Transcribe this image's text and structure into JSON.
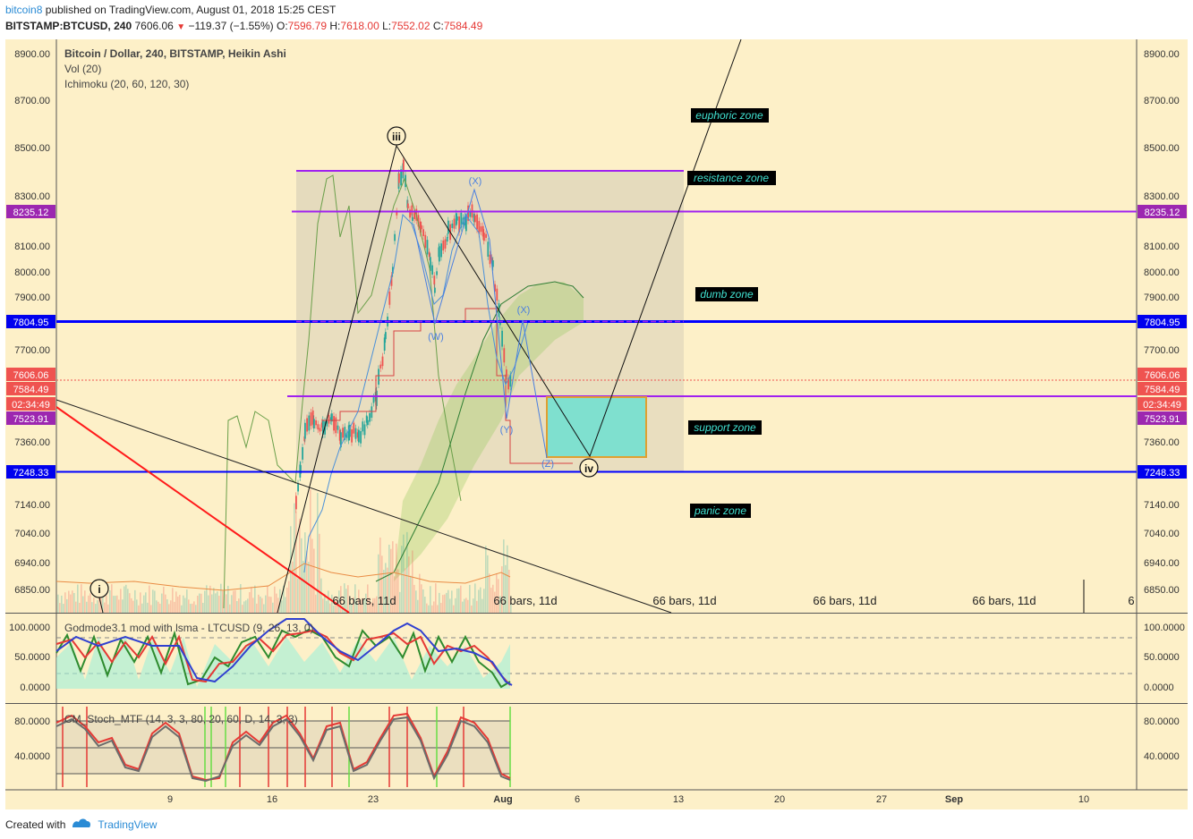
{
  "header": {
    "user": "bitcoin8",
    "published": "published on TradingView.com, August 01, 2018 15:25 CEST",
    "symbol": "BITSTAMP:BTCUSD, 240",
    "last": "7606.06",
    "change": "−119.37 (−1.55%)",
    "o_label": "O:",
    "o": "7596.79",
    "h_label": "H:",
    "h": "7618.00",
    "l_label": "L:",
    "l": "7552.02",
    "c_label": "C:",
    "c": "7584.49"
  },
  "legend": {
    "title": "Bitcoin / Dollar, 240, BITSTAMP, Heikin Ashi",
    "vol": "Vol (20)",
    "ichimoku": "Ichimoku (20, 60, 120, 30)",
    "osc1": "Godmode3.1 mod with lsma - LTCUSD (9, 26, 13, 0)",
    "osc2": "CM_Stoch_MTF (14, 3, 3, 80, 20, 60, D, 14, 3, 3)"
  },
  "footer": {
    "created": "Created with",
    "brand": "TradingView"
  },
  "colors": {
    "chart_bg": "#fdf0c8",
    "up": "#26a69a",
    "down": "#ef5350",
    "purple": "#a020f0",
    "blue": "#0000ff",
    "zone_label_bg": "#000000",
    "zone_label_fg": "#40e0d0",
    "target_box": "#7fe0cf"
  },
  "chart_data": {
    "type": "candlestick",
    "price_axis": {
      "ticks": [
        "8900.00",
        "8700.00",
        "8500.00",
        "8300.00",
        "8100.00",
        "8000.00",
        "7900.00",
        "7700.00",
        "7360.00",
        "7140.00",
        "7040.00",
        "6940.00",
        "6850.00"
      ],
      "badges": [
        {
          "text": "8235.12",
          "color": "#9c27b0"
        },
        {
          "text": "7804.95",
          "color": "#0000ee"
        },
        {
          "text": "7606.06",
          "color": "#ef5350"
        },
        {
          "text": "7584.49",
          "color": "#ef5350"
        },
        {
          "text": "02:34:49",
          "color": "#ef5350"
        },
        {
          "text": "7523.91",
          "color": "#9c27b0"
        },
        {
          "text": "7248.33",
          "color": "#0000ee"
        }
      ]
    },
    "time_axis": {
      "ticks": [
        "9",
        "16",
        "23",
        "Aug",
        "6",
        "13",
        "20",
        "27",
        "Sep",
        "10"
      ]
    },
    "zones": [
      "euphoric zone",
      "resistance zone",
      "dumb zone",
      "support zone",
      "panic zone"
    ],
    "wave_labels": [
      "iii",
      "i",
      "iv"
    ],
    "sub_wave_labels": [
      "(X)",
      "(W)",
      "(X)",
      "(Y)",
      "(Z)"
    ],
    "bars_labels": [
      "66 bars, 11d",
      "66 bars, 11d",
      "66 bars, 11d",
      "66 bars, 11d",
      "66 bars, 11d",
      "6"
    ],
    "osc1_axis": [
      "100.0000",
      "50.0000",
      "0.0000"
    ],
    "osc2_axis": [
      "80.0000",
      "40.0000"
    ],
    "horizontal_levels": [
      {
        "value": 8400,
        "label": "",
        "color": "purple"
      },
      {
        "value": 8235.12,
        "label": "8235.12",
        "color": "purple"
      },
      {
        "value": 7804.95,
        "label": "7804.95",
        "color": "blue"
      },
      {
        "value": 7550,
        "label": "",
        "color": "purple"
      },
      {
        "value": 7248.33,
        "label": "7248.33",
        "color": "blue"
      }
    ]
  }
}
